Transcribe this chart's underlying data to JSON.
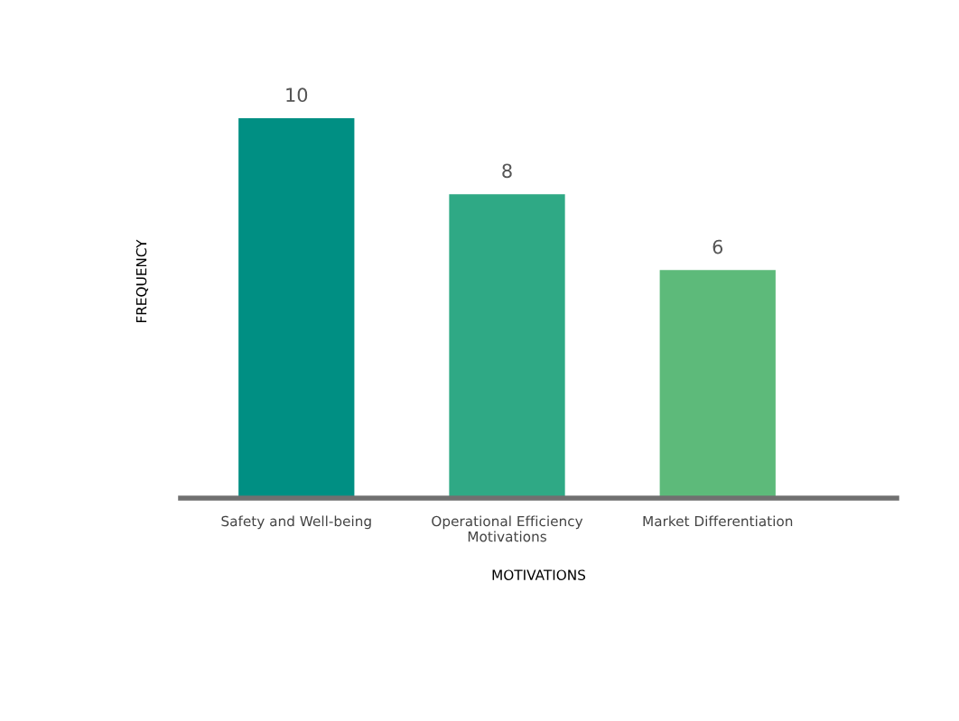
{
  "chart_data": {
    "type": "bar",
    "xlabel": "MOTIVATIONS",
    "ylabel": "FREQUENCY",
    "categories": [
      "Safety and Well-being",
      "Operational Efficiency Motivations",
      "Market Differentiation"
    ],
    "values": [
      10,
      8,
      6
    ],
    "colors": [
      "#008f83",
      "#2fa985",
      "#5dba7a"
    ],
    "data_labels": true,
    "grid": false,
    "legend": false
  }
}
